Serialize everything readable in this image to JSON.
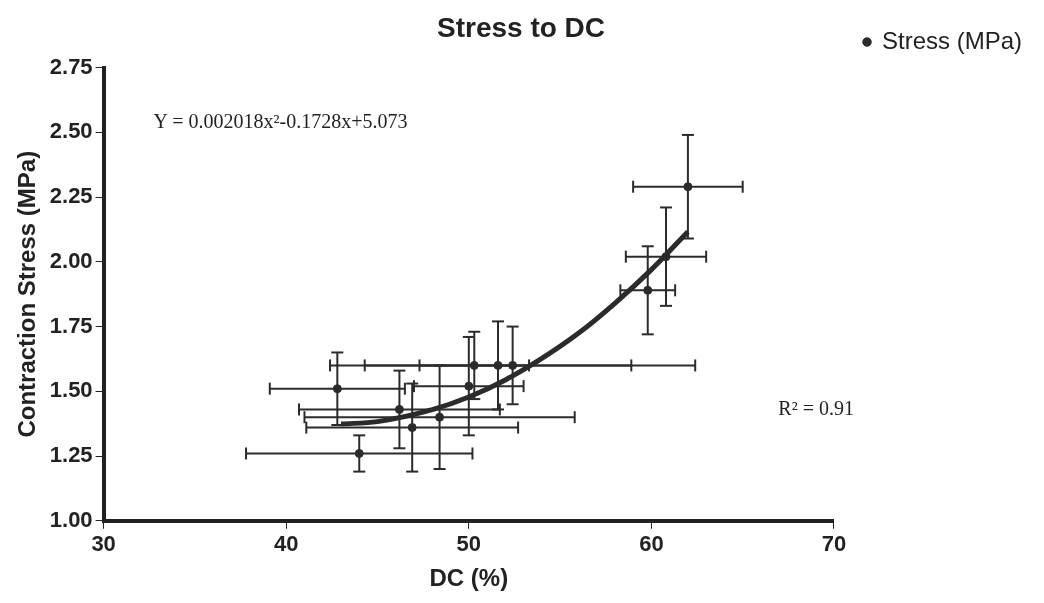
{
  "chart_data": {
    "type": "scatter",
    "title": "Stress to DC",
    "xlabel": "DC (%)",
    "ylabel": "Contraction Stress (MPa)",
    "xlim": [
      30,
      70
    ],
    "xticks": [
      30,
      40,
      50,
      60,
      70
    ],
    "ylim": [
      1,
      2.75
    ],
    "yticks": [
      {
        "value": 1,
        "label": "1.00"
      },
      {
        "value": 1.25,
        "label": "1.25"
      },
      {
        "value": 1.5,
        "label": "1.50"
      },
      {
        "value": 1.75,
        "label": "1.75"
      },
      {
        "value": 2,
        "label": "2.00"
      },
      {
        "value": 2.25,
        "label": "2.25"
      },
      {
        "value": 2.5,
        "label": "2.50"
      },
      {
        "value": 2.75,
        "label": "2.75"
      }
    ],
    "series": [
      {
        "name": "Stress (MPa)",
        "color": "#2b2b2b",
        "marker": "circle",
        "x": [
          42.8,
          44.0,
          46.2,
          46.9,
          48.4,
          50.0,
          50.3,
          51.6,
          52.4,
          59.8,
          60.8,
          62.0
        ],
        "values": [
          1.51,
          1.26,
          1.43,
          1.36,
          1.4,
          1.52,
          1.6,
          1.6,
          1.6,
          1.89,
          2.02,
          2.29
        ],
        "errors": [
          0.14,
          0.07,
          0.15,
          0.17,
          0.2,
          0.19,
          0.13,
          0.17,
          0.15,
          0.17,
          0.19,
          0.2
        ],
        "xerrors": [
          3.7,
          6.2,
          5.5,
          5.8,
          7.4,
          3,
          3,
          7.3,
          10,
          1.5,
          2.2,
          3
        ]
      },
      {
        "type": "line",
        "color": "#2b2b2b",
        "line_style": "solid",
        "marker": "none",
        "x": [
          43,
          45,
          48,
          50,
          52,
          54,
          56,
          58,
          60,
          62
        ],
        "values": [
          1.374,
          1.383,
          1.429,
          1.478,
          1.544,
          1.627,
          1.724,
          1.84,
          1.97,
          2.116
        ]
      }
    ],
    "annotations": [
      "Y = 0.002018x²-0.1728x+5.073",
      "R² = 0.91"
    ],
    "legend": "top right",
    "grid": false
  }
}
